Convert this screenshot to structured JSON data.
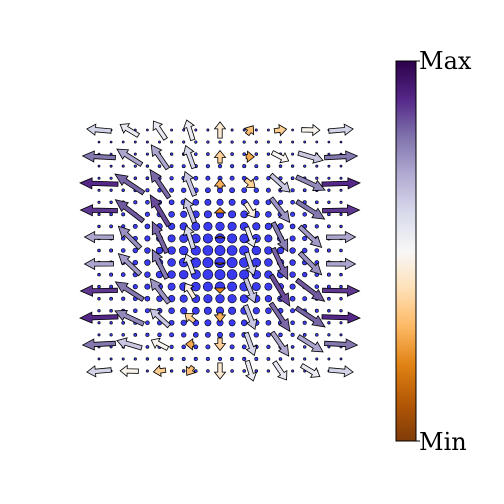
{
  "chart_data": {
    "type": "quiver",
    "title": "",
    "xlabel": "",
    "ylabel": "",
    "grid": false,
    "axes_visible": false,
    "point_grid": {
      "cols": 21,
      "rows": 21,
      "x_range": [
        -1,
        1
      ],
      "y_range": [
        -1,
        1
      ]
    },
    "dots": {
      "color": "#3a3af0",
      "edge": "#000000",
      "size_encodes": "magnitude"
    },
    "arrow_grid": {
      "cols": 9,
      "rows": 10,
      "x_range": [
        -1,
        1
      ],
      "y_range": [
        -1,
        1
      ]
    },
    "arrow_colormap": "PuOr",
    "colorbar": {
      "position": "right",
      "max_label": "Max",
      "min_label": "Min",
      "colors_top_to_bottom": [
        "#2d004b",
        "#542788",
        "#8073ac",
        "#b2abd2",
        "#d8daeb",
        "#f7f7f7",
        "#fee0b6",
        "#fdb863",
        "#e08214",
        "#b35806",
        "#7f3b08"
      ]
    }
  }
}
